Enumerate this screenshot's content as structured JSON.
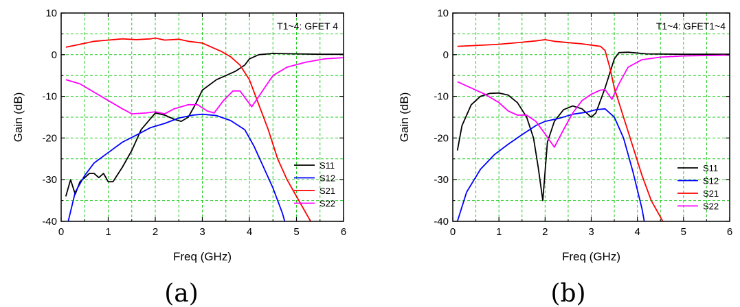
{
  "chart_data": [
    {
      "type": "line",
      "panel_label": "(a)",
      "annotation": "T1~4: GFET 4",
      "xlabel": "Freq (GHz)",
      "ylabel": "Gain (dB)",
      "xlim": [
        0,
        6
      ],
      "ylim": [
        -40,
        10
      ],
      "xticks": [
        "0",
        "1",
        "2",
        "3",
        "4",
        "5",
        "6"
      ],
      "yticks": [
        "-40",
        "-30",
        "-20",
        "-10",
        "0",
        "10"
      ],
      "grid": true,
      "legend_position": "bottom-right",
      "series": [
        {
          "name": "S11",
          "color": "#000000",
          "points": [
            [
              0.1,
              -34
            ],
            [
              0.2,
              -30
            ],
            [
              0.3,
              -33.5
            ],
            [
              0.4,
              -30.5
            ],
            [
              0.5,
              -29.5
            ],
            [
              0.6,
              -28.5
            ],
            [
              0.7,
              -28.5
            ],
            [
              0.8,
              -29.5
            ],
            [
              0.9,
              -28.5
            ],
            [
              1.0,
              -30.5
            ],
            [
              1.1,
              -30.5
            ],
            [
              1.3,
              -27
            ],
            [
              1.5,
              -23
            ],
            [
              1.7,
              -18
            ],
            [
              2.0,
              -14
            ],
            [
              2.2,
              -14.5
            ],
            [
              2.4,
              -15.5
            ],
            [
              2.55,
              -16
            ],
            [
              2.7,
              -15
            ],
            [
              2.85,
              -12
            ],
            [
              3.0,
              -8.5
            ],
            [
              3.3,
              -6
            ],
            [
              3.5,
              -5
            ],
            [
              3.7,
              -4
            ],
            [
              3.9,
              -2.5
            ],
            [
              4.0,
              -1
            ],
            [
              4.2,
              0
            ],
            [
              4.5,
              0.3
            ],
            [
              5.0,
              0.2
            ],
            [
              5.5,
              0.1
            ],
            [
              6.0,
              0.1
            ]
          ]
        },
        {
          "name": "S12",
          "color": "#0000ff",
          "points": [
            [
              0.15,
              -40
            ],
            [
              0.3,
              -33
            ],
            [
              0.5,
              -29
            ],
            [
              0.7,
              -26
            ],
            [
              1.0,
              -23.5
            ],
            [
              1.3,
              -21
            ],
            [
              1.6,
              -19.3
            ],
            [
              1.9,
              -17.5
            ],
            [
              2.2,
              -16.5
            ],
            [
              2.5,
              -15.2
            ],
            [
              2.8,
              -14.5
            ],
            [
              3.0,
              -14.3
            ],
            [
              3.3,
              -14.6
            ],
            [
              3.6,
              -15.8
            ],
            [
              3.9,
              -18
            ],
            [
              4.1,
              -22
            ],
            [
              4.3,
              -27
            ],
            [
              4.5,
              -32
            ],
            [
              4.7,
              -38
            ],
            [
              4.75,
              -40
            ]
          ]
        },
        {
          "name": "S21",
          "color": "#ff0000",
          "points": [
            [
              0.1,
              1.8
            ],
            [
              0.4,
              2.5
            ],
            [
              0.7,
              3.2
            ],
            [
              1.0,
              3.5
            ],
            [
              1.3,
              3.8
            ],
            [
              1.6,
              3.6
            ],
            [
              1.9,
              3.8
            ],
            [
              2.0,
              4.0
            ],
            [
              2.2,
              3.5
            ],
            [
              2.5,
              3.7
            ],
            [
              2.7,
              3.2
            ],
            [
              3.0,
              2.8
            ],
            [
              3.2,
              1.8
            ],
            [
              3.4,
              0.8
            ],
            [
              3.6,
              -0.5
            ],
            [
              3.8,
              -2.5
            ],
            [
              4.0,
              -6
            ],
            [
              4.2,
              -12
            ],
            [
              4.4,
              -18
            ],
            [
              4.6,
              -25
            ],
            [
              4.8,
              -30
            ],
            [
              5.0,
              -34
            ],
            [
              5.2,
              -38
            ],
            [
              5.3,
              -40
            ]
          ]
        },
        {
          "name": "S22",
          "color": "#ff00ff",
          "points": [
            [
              0.1,
              -6
            ],
            [
              0.4,
              -7
            ],
            [
              0.7,
              -9
            ],
            [
              1.0,
              -11
            ],
            [
              1.3,
              -13
            ],
            [
              1.5,
              -14.2
            ],
            [
              1.8,
              -14
            ],
            [
              2.0,
              -13.7
            ],
            [
              2.2,
              -14.2
            ],
            [
              2.4,
              -13
            ],
            [
              2.7,
              -12
            ],
            [
              2.9,
              -12
            ],
            [
              3.1,
              -13.5
            ],
            [
              3.25,
              -14
            ],
            [
              3.45,
              -11
            ],
            [
              3.65,
              -8.7
            ],
            [
              3.8,
              -8.7
            ],
            [
              3.95,
              -11
            ],
            [
              4.05,
              -12.5
            ],
            [
              4.2,
              -10
            ],
            [
              4.5,
              -5
            ],
            [
              4.8,
              -3
            ],
            [
              5.2,
              -1.8
            ],
            [
              5.6,
              -1
            ],
            [
              6.0,
              -0.7
            ]
          ]
        }
      ]
    },
    {
      "type": "line",
      "panel_label": "(b)",
      "annotation": "T1~4: GFET1~4",
      "xlabel": "Freq (GHz)",
      "ylabel": "Gain (dB)",
      "xlim": [
        0,
        6
      ],
      "ylim": [
        -40,
        10
      ],
      "xticks": [
        "0",
        "1",
        "2",
        "3",
        "4",
        "5",
        "6"
      ],
      "yticks": [
        "-40",
        "-30",
        "-20",
        "-10",
        "0",
        "10"
      ],
      "grid": true,
      "legend_position": "bottom-right",
      "series": [
        {
          "name": "S11",
          "color": "#000000",
          "points": [
            [
              0.1,
              -23
            ],
            [
              0.2,
              -17
            ],
            [
              0.4,
              -12
            ],
            [
              0.6,
              -10
            ],
            [
              0.8,
              -9.3
            ],
            [
              1.0,
              -9.2
            ],
            [
              1.2,
              -9.7
            ],
            [
              1.4,
              -11.5
            ],
            [
              1.6,
              -15
            ],
            [
              1.75,
              -20
            ],
            [
              1.85,
              -27
            ],
            [
              1.95,
              -35
            ],
            [
              2.05,
              -21
            ],
            [
              2.2,
              -16
            ],
            [
              2.4,
              -13.2
            ],
            [
              2.6,
              -12.3
            ],
            [
              2.8,
              -13
            ],
            [
              3.0,
              -15
            ],
            [
              3.1,
              -14
            ],
            [
              3.3,
              -8
            ],
            [
              3.5,
              -1
            ],
            [
              3.6,
              0.5
            ],
            [
              3.8,
              0.6
            ],
            [
              4.2,
              0.2
            ],
            [
              5.0,
              0.1
            ],
            [
              6.0,
              0.1
            ]
          ]
        },
        {
          "name": "S12",
          "color": "#0000ff",
          "points": [
            [
              0.1,
              -40
            ],
            [
              0.3,
              -33
            ],
            [
              0.6,
              -27.5
            ],
            [
              0.9,
              -24
            ],
            [
              1.2,
              -21.5
            ],
            [
              1.5,
              -19.2
            ],
            [
              1.8,
              -17
            ],
            [
              2.0,
              -16
            ],
            [
              2.3,
              -15.3
            ],
            [
              2.6,
              -14.3
            ],
            [
              2.9,
              -13.8
            ],
            [
              3.1,
              -13.2
            ],
            [
              3.3,
              -13
            ],
            [
              3.5,
              -15
            ],
            [
              3.7,
              -20
            ],
            [
              3.9,
              -28
            ],
            [
              4.1,
              -37
            ],
            [
              4.15,
              -40
            ]
          ]
        },
        {
          "name": "S21",
          "color": "#ff0000",
          "points": [
            [
              0.1,
              2.0
            ],
            [
              0.5,
              2.2
            ],
            [
              1.0,
              2.5
            ],
            [
              1.5,
              3.0
            ],
            [
              1.8,
              3.3
            ],
            [
              2.0,
              3.6
            ],
            [
              2.2,
              3.2
            ],
            [
              2.5,
              2.9
            ],
            [
              2.8,
              2.6
            ],
            [
              3.0,
              2.3
            ],
            [
              3.2,
              2.0
            ],
            [
              3.3,
              1.0
            ],
            [
              3.4,
              -3
            ],
            [
              3.5,
              -8
            ],
            [
              3.7,
              -15
            ],
            [
              3.9,
              -22
            ],
            [
              4.1,
              -29
            ],
            [
              4.3,
              -35
            ],
            [
              4.5,
              -39
            ],
            [
              4.55,
              -40
            ]
          ]
        },
        {
          "name": "S22",
          "color": "#ff00ff",
          "points": [
            [
              0.1,
              -6.5
            ],
            [
              0.4,
              -8
            ],
            [
              0.7,
              -9.5
            ],
            [
              1.0,
              -11.5
            ],
            [
              1.2,
              -13.5
            ],
            [
              1.4,
              -14.5
            ],
            [
              1.6,
              -14.5
            ],
            [
              1.8,
              -16
            ],
            [
              2.0,
              -19
            ],
            [
              2.2,
              -22.2
            ],
            [
              2.4,
              -18
            ],
            [
              2.6,
              -14
            ],
            [
              2.8,
              -11
            ],
            [
              3.0,
              -9.5
            ],
            [
              3.2,
              -8.5
            ],
            [
              3.3,
              -8.4
            ],
            [
              3.45,
              -10.7
            ],
            [
              3.6,
              -7
            ],
            [
              3.8,
              -3
            ],
            [
              4.1,
              -1.2
            ],
            [
              4.5,
              -0.6
            ],
            [
              5.0,
              -0.3
            ],
            [
              6.0,
              -0.1
            ]
          ]
        }
      ]
    }
  ]
}
